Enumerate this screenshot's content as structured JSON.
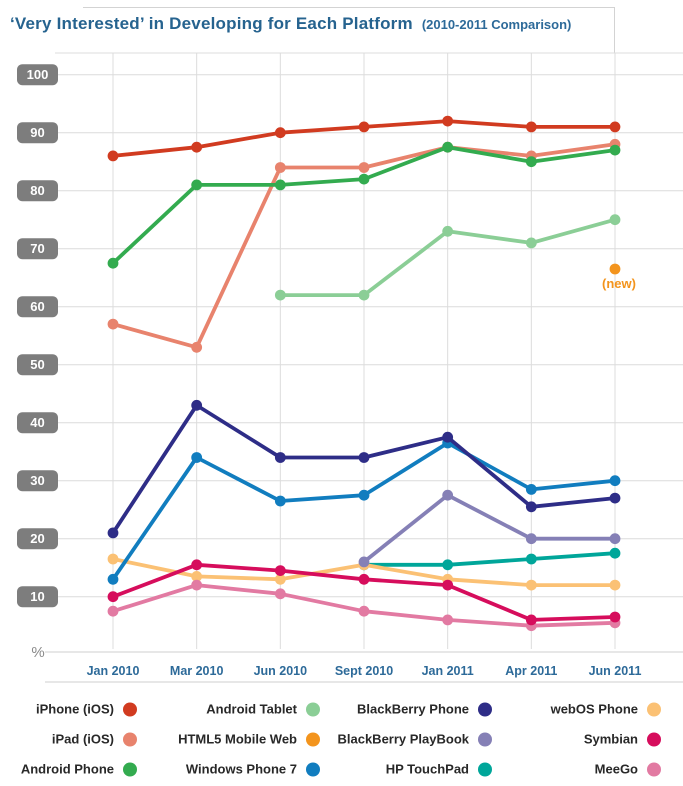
{
  "header": {
    "title": "‘Very Interested’ in Developing for Each Platform",
    "subtitle": "(2010-2011 Comparison)"
  },
  "axis": {
    "percent_symbol": "%"
  },
  "styles": {
    "title_color": "#26638f",
    "tick_label_color": "#2d6a99",
    "y_pill_bg": "#7d7d7d",
    "y_pill_text": "#ffffff",
    "gridline_color": "#dcdcdc",
    "frame_color": "#cfcfcf",
    "legend_text_color": "#282828",
    "annotation_color": "#f3941d"
  },
  "chart_data": {
    "type": "line",
    "title": "‘Very Interested’ in Developing for Each Platform (2010-2011 Comparison)",
    "xlabel": "",
    "ylabel": "%",
    "ylim": [
      0,
      100
    ],
    "y_ticks": [
      10,
      20,
      30,
      40,
      50,
      60,
      70,
      80,
      90,
      100
    ],
    "grid": true,
    "categories": [
      "Jan 2010",
      "Mar 2010",
      "Jun 2010",
      "Sept 2010",
      "Jan 2011",
      "Apr 2011",
      "Jun 2011"
    ],
    "series": [
      {
        "name": "HP TouchPad",
        "color": "#00a69a",
        "values": [
          null,
          null,
          null,
          15.5,
          15.5,
          16.5,
          17.5
        ]
      },
      {
        "name": "webOS Phone",
        "color": "#fbc174",
        "values": [
          16.5,
          13.5,
          13,
          15.5,
          13,
          12,
          12
        ]
      },
      {
        "name": "BlackBerry PlayBook",
        "color": "#8580b6",
        "values": [
          null,
          null,
          null,
          16,
          27.5,
          20,
          20
        ]
      },
      {
        "name": "MeeGo",
        "color": "#e27aa2",
        "values": [
          7.5,
          12,
          10.5,
          7.5,
          6,
          5,
          5.5
        ]
      },
      {
        "name": "Symbian",
        "color": "#d60d5c",
        "values": [
          10,
          15.5,
          14.5,
          13,
          12,
          6,
          6.5
        ]
      },
      {
        "name": "Windows Phone 7",
        "color": "#117dbf",
        "values": [
          13,
          34,
          26.5,
          27.5,
          36.5,
          28.5,
          30
        ]
      },
      {
        "name": "BlackBerry Phone",
        "color": "#2e2d87",
        "values": [
          21,
          43,
          34,
          34,
          37.5,
          25.5,
          27
        ]
      },
      {
        "name": "Android Tablet",
        "color": "#8bce96",
        "values": [
          null,
          null,
          62,
          62,
          73,
          71,
          75
        ]
      },
      {
        "name": "iPad (iOS)",
        "color": "#e8836d",
        "values": [
          57,
          53,
          84,
          84,
          87.5,
          86,
          88
        ]
      },
      {
        "name": "Android Phone",
        "color": "#33ab4f",
        "values": [
          67.5,
          81,
          81,
          82,
          87.5,
          85,
          87
        ]
      },
      {
        "name": "iPhone (iOS)",
        "color": "#d13b20",
        "values": [
          86,
          87.5,
          90,
          91,
          92,
          91,
          91
        ]
      },
      {
        "name": "HTML5 Mobile Web",
        "color": "#f3941d",
        "values": [
          null,
          null,
          null,
          null,
          null,
          null,
          66.5
        ]
      }
    ],
    "annotations": [
      {
        "text": "(new)",
        "series": "HTML5 Mobile Web",
        "category_index": 6,
        "value": 66.5,
        "color": "#f3941d"
      }
    ],
    "legend": {
      "position": "bottom",
      "columns": [
        [
          "iPhone (iOS)",
          "iPad (iOS)",
          "Android Phone"
        ],
        [
          "Android Tablet",
          "HTML5 Mobile Web",
          "Windows Phone 7"
        ],
        [
          "BlackBerry Phone",
          "BlackBerry PlayBook",
          "HP TouchPad"
        ],
        [
          "webOS Phone",
          "Symbian",
          "MeeGo"
        ]
      ]
    }
  }
}
